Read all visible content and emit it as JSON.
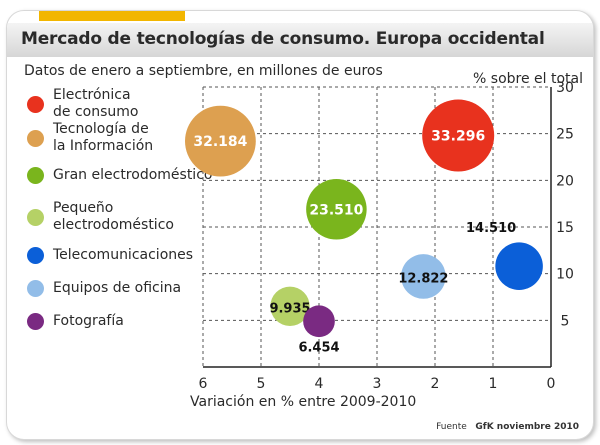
{
  "header": {
    "title": "Mercado de tecnologías de consumo. Europa occidental",
    "subtitle": "Datos de enero a septiembre, en millones de euros"
  },
  "source": {
    "prefix": "Fuente",
    "name": "GfK noviembre 2010"
  },
  "colors": {
    "accent": "#f2b600",
    "titlebar": "#dcdcdc",
    "grid": "#555555"
  },
  "chart_data": {
    "type": "scatter",
    "variant": "bubble",
    "title": "Mercado de tecnologías de consumo. Europa occidental",
    "subtitle": "Datos de enero a septiembre, en millones de euros",
    "xlabel": "Variación en % entre 2009-2010",
    "ylabel": "% sobre el total",
    "xlim": [
      0,
      6
    ],
    "x_reversed": true,
    "ylim": [
      0,
      30
    ],
    "x_ticks": [
      "6",
      "5",
      "4",
      "3",
      "2",
      "1",
      "0"
    ],
    "y_ticks": [
      "5",
      "10",
      "15",
      "20",
      "25",
      "30"
    ],
    "grid": true,
    "legend_position": "left",
    "series": [
      {
        "name": "Electrónica\nde consumo",
        "label": "33.296",
        "x": 1.6,
        "y": 24.8,
        "size": 33296,
        "color": "#e8321e",
        "label_inside": true
      },
      {
        "name": "Tecnología de\nla Información",
        "label": "32.184",
        "x": 5.7,
        "y": 24.2,
        "size": 32184,
        "color": "#dda050",
        "label_inside": true
      },
      {
        "name": "Gran electrodoméstico",
        "label": "23.510",
        "x": 3.7,
        "y": 16.9,
        "size": 23510,
        "color": "#7ab51d",
        "label_inside": true
      },
      {
        "name": "Pequeño\nelectrodoméstico",
        "label": "9.935",
        "x": 4.5,
        "y": 6.5,
        "size": 9935,
        "color": "#b5d166",
        "label_inside": false
      },
      {
        "name": "Telecomunicaciones",
        "label": "14.510",
        "x": 0.55,
        "y": 10.8,
        "size": 14510,
        "color": "#0b5fd8",
        "label_inside": false
      },
      {
        "name": "Equipos de oficina",
        "label": "12.822",
        "x": 2.2,
        "y": 9.7,
        "size": 12822,
        "color": "#92bde8",
        "label_inside": false
      },
      {
        "name": "Fotografía",
        "label": "6.454",
        "x": 4.0,
        "y": 4.9,
        "size": 6454,
        "color": "#7a2a82",
        "label_inside": false
      }
    ]
  }
}
